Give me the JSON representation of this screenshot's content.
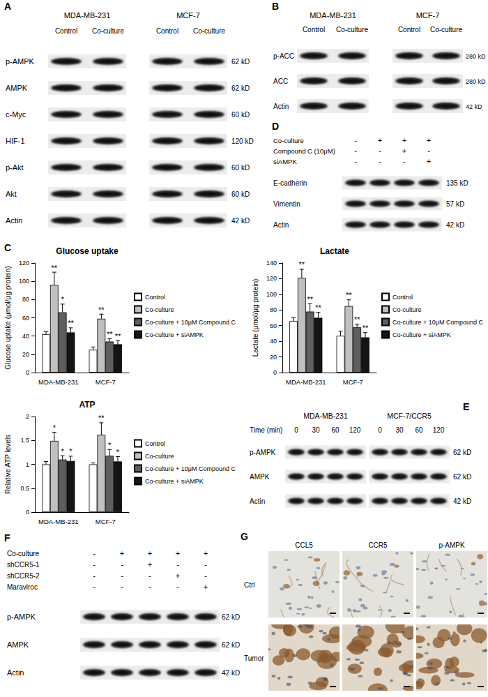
{
  "chart_data": [
    {
      "type": "bar",
      "title": "Glucose uptake",
      "y_label": "Glucose uptake (μmol/μg protein)",
      "categories": [
        "MDA-MB-231",
        "MCF-7"
      ],
      "series": [
        {
          "name": "Control",
          "color": "#ffffff",
          "values": [
            42,
            25
          ],
          "errors": [
            3,
            3
          ],
          "annotations": [
            null,
            null
          ]
        },
        {
          "name": "Co-culture",
          "color": "#c0c0c0",
          "values": [
            96,
            59
          ],
          "errors": [
            14,
            5
          ],
          "annotations": [
            "**",
            "**"
          ]
        },
        {
          "name": "Co-culture + 10μM Compound C",
          "color": "#5f5f5f",
          "values": [
            66,
            34
          ],
          "errors": [
            9,
            3
          ],
          "annotations": [
            "*",
            "**"
          ]
        },
        {
          "name": "Co-culture + siAMPK",
          "color": "#141414",
          "values": [
            44,
            31
          ],
          "errors": [
            5,
            4
          ],
          "annotations": [
            "**",
            "**"
          ]
        }
      ],
      "ylim": [
        0,
        120
      ],
      "yticks": [
        0,
        20,
        40,
        60,
        80,
        100,
        120
      ],
      "grid": false,
      "legend": "right"
    },
    {
      "type": "bar",
      "title": "Lactate",
      "y_label": "Lactate (μmol/μg protein)",
      "categories": [
        "MDA-MB-231",
        "MCF-7"
      ],
      "series": [
        {
          "name": "Control",
          "color": "#ffffff",
          "values": [
            66,
            47
          ],
          "errors": [
            4,
            6
          ],
          "annotations": [
            null,
            null
          ]
        },
        {
          "name": "Co-culture",
          "color": "#c0c0c0",
          "values": [
            121,
            85
          ],
          "errors": [
            11,
            8
          ],
          "annotations": [
            "**",
            "**"
          ]
        },
        {
          "name": "Co-culture + 10μM Compound C",
          "color": "#5f5f5f",
          "values": [
            78,
            58
          ],
          "errors": [
            10,
            4
          ],
          "annotations": [
            "**",
            "**"
          ]
        },
        {
          "name": "Co-culture + siAMPK",
          "color": "#141414",
          "values": [
            70,
            45
          ],
          "errors": [
            7,
            6
          ],
          "annotations": [
            "**",
            "**"
          ]
        }
      ],
      "ylim": [
        0,
        140
      ],
      "yticks": [
        0,
        20,
        40,
        60,
        80,
        100,
        120,
        140
      ],
      "grid": false,
      "legend": "right"
    },
    {
      "type": "bar",
      "title": "ATP",
      "y_label": "Relative ATP levels",
      "categories": [
        "MDA-MB-231",
        "MCF-7"
      ],
      "series": [
        {
          "name": "Control",
          "color": "#ffffff",
          "values": [
            1.0,
            1.0
          ],
          "errors": [
            0.06,
            0.03
          ],
          "annotations": [
            null,
            null
          ]
        },
        {
          "name": "Co-culture",
          "color": "#c0c0c0",
          "values": [
            1.49,
            1.62
          ],
          "errors": [
            0.18,
            0.25
          ],
          "annotations": [
            "*",
            "**"
          ]
        },
        {
          "name": "Co-culture + 10μM Compound C",
          "color": "#5f5f5f",
          "values": [
            1.1,
            1.18
          ],
          "errors": [
            0.08,
            0.13
          ],
          "annotations": [
            "*",
            "*"
          ]
        },
        {
          "name": "Co-culture + siAMPK",
          "color": "#141414",
          "values": [
            1.07,
            1.06
          ],
          "errors": [
            0.1,
            0.1
          ],
          "annotations": [
            "*",
            "*"
          ]
        }
      ],
      "ylim": [
        0,
        2
      ],
      "yticks": [
        0,
        0.5,
        1,
        1.5,
        2
      ],
      "grid": false,
      "legend": "right"
    }
  ],
  "panels": {
    "A": {
      "label": "A",
      "cell_lines": [
        "MDA-MB-231",
        "MCF-7"
      ],
      "lanes": [
        "Control",
        "Co-culture"
      ],
      "rows": [
        "p-AMPK",
        "AMPK",
        "c-Myc",
        "HIF-1",
        "p-Akt",
        "Akt",
        "Actin"
      ],
      "sizes": [
        "62 kD",
        "62 kD",
        "60 kD",
        "120 kD",
        "60 kD",
        "60 kD",
        "42 kD"
      ]
    },
    "B": {
      "label": "B",
      "cell_lines": [
        "MDA-MB-231",
        "MCF-7"
      ],
      "lanes": [
        "Control",
        "Co-culture"
      ],
      "rows": [
        "p-ACC",
        "ACC",
        "Actin"
      ],
      "sizes": [
        "280 kD",
        "280 kD",
        "42 kD"
      ]
    },
    "C": {
      "label": "C"
    },
    "D": {
      "label": "D",
      "conditions": [
        {
          "name": "Co-culture",
          "signs": [
            "-",
            "+",
            "+",
            "+"
          ]
        },
        {
          "name": "Compound C (10μM)",
          "signs": [
            "-",
            "-",
            "+",
            "-"
          ]
        },
        {
          "name": "siAMPK",
          "signs": [
            "-",
            "-",
            "-",
            "+"
          ]
        }
      ],
      "rows": [
        "E-cadherin",
        "Vimentin",
        "Actin"
      ],
      "sizes": [
        "135 kD",
        "57 kD",
        "42 kD"
      ]
    },
    "E": {
      "label": "E",
      "cell_lines": [
        "MDA-MB-231",
        "MCF-7/CCR5"
      ],
      "time_label": "Time (min)",
      "times": [
        0,
        30,
        60,
        120
      ],
      "rows": [
        "p-AMPK",
        "AMPK",
        "Actin"
      ],
      "sizes": [
        "62 kD",
        "62 kD",
        "42 kD"
      ]
    },
    "F": {
      "label": "F",
      "conditions": [
        {
          "name": "Co-culture",
          "signs": [
            "-",
            "+",
            "+",
            "+",
            "+"
          ]
        },
        {
          "name": "shCCR5-1",
          "signs": [
            "-",
            "-",
            "+",
            "-",
            "-"
          ]
        },
        {
          "name": "shCCR5-2",
          "signs": [
            "-",
            "-",
            "-",
            "+",
            "-"
          ]
        },
        {
          "name": "Maraviroc",
          "signs": [
            "-",
            "-",
            "-",
            "-",
            "+"
          ]
        }
      ],
      "rows": [
        "p-AMPK",
        "AMPK",
        "Actin"
      ],
      "sizes": [
        "62 kD",
        "62 kD",
        "42 kD"
      ]
    },
    "G": {
      "label": "G",
      "columns": [
        "CCL5",
        "CCR5",
        "p-AMPK"
      ],
      "rows": [
        "Ctrl",
        "Tumor"
      ]
    }
  }
}
